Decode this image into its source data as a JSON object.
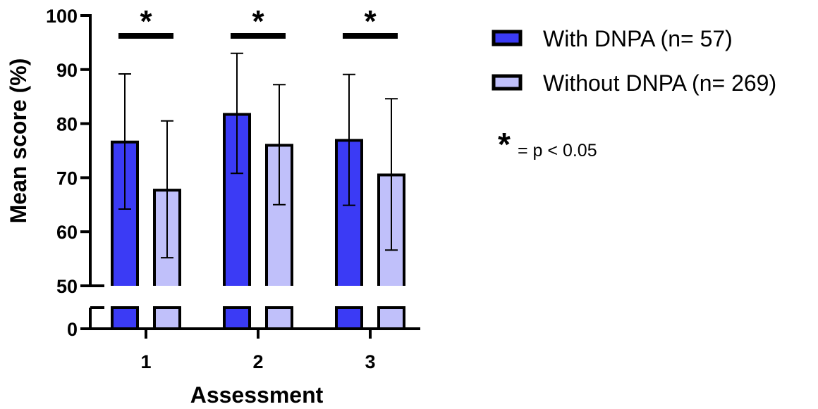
{
  "chart_data": {
    "type": "bar",
    "title": "",
    "xlabel": "Assessment",
    "ylabel": "Mean score (%)",
    "categories": [
      "1",
      "2",
      "3"
    ],
    "y_ticks": [
      0,
      50,
      60,
      70,
      80,
      90,
      100
    ],
    "ylim": [
      0,
      100
    ],
    "axis_break": [
      0,
      50
    ],
    "grid": false,
    "legend_position": "right",
    "series": [
      {
        "name": "With DNPA (n= 57)",
        "color": "#3b3bf5",
        "values": [
          76.6,
          81.7,
          76.9
        ],
        "error_low": [
          64.2,
          70.8,
          64.9
        ],
        "error_high": [
          89.2,
          93.0,
          89.1
        ]
      },
      {
        "name": "Without DNPA (n= 269)",
        "color": "#c0c0fa",
        "values": [
          67.7,
          76.0,
          70.5
        ],
        "error_low": [
          55.2,
          65.0,
          56.6
        ],
        "error_high": [
          80.5,
          87.2,
          84.6
        ]
      }
    ],
    "significance": [
      {
        "category": "1",
        "symbol": "*"
      },
      {
        "category": "2",
        "symbol": "*"
      },
      {
        "category": "3",
        "symbol": "*"
      }
    ],
    "note": {
      "symbol": "*",
      "text": "= p < 0.05"
    }
  }
}
